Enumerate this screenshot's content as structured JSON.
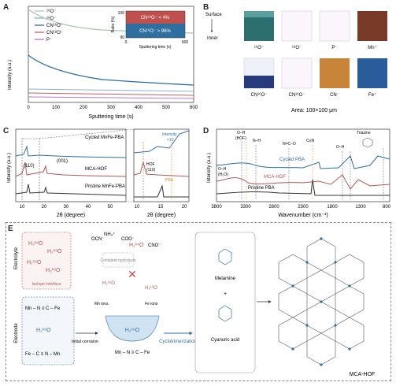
{
  "panels": {
    "A": {
      "label": "A",
      "ylabel": "Intensity (a.u.)",
      "xlabel": "Sputtering time (s)",
      "xticks": [
        "0",
        "100",
        "200",
        "300",
        "400",
        "500",
        "600"
      ],
      "legend": [
        "¹⁶O⁻",
        "¹⁸O⁻",
        "CN¹⁶O⁻",
        "CN¹⁸O⁻",
        "P⁻"
      ],
      "inset": {
        "ylabel": "Ratio (%)",
        "xlabel": "Sputtering time (s)",
        "yticks": [
          "90",
          "100"
        ],
        "xticks": [
          "0",
          "600"
        ],
        "top_label": "CN¹⁸O⁻ < 4%",
        "bottom_label": "CN¹⁶O⁻ > 96%",
        "colors": {
          "top": "#c0504d",
          "bottom": "#2f6f9f"
        }
      }
    },
    "B": {
      "label": "B",
      "surface_label": "Surface",
      "inner_label": "Inner",
      "row1": [
        "¹⁶O⁻",
        "¹⁸O⁻",
        "P⁻",
        "Mn⁺"
      ],
      "row2": [
        "CN¹⁶O⁻",
        "CN¹⁸O⁻",
        "CN⁻",
        "Fe⁺"
      ],
      "area": "Area: 100×100 µm"
    },
    "C": {
      "label": "C",
      "ylabel": "Intensity (a.u.)",
      "xlabel": "2θ (degree)",
      "xticks": [
        "10",
        "20",
        "30",
        "40",
        "50"
      ],
      "inset_xticks": [
        "10",
        "15",
        "20"
      ],
      "series_labels": [
        "Cycled MnFe-PBA",
        "MCA-HOF",
        "Pristine MnFe-PBA"
      ],
      "peaks": [
        "(110)",
        "(001)"
      ],
      "zoom_labels": {
        "intensity": "Intensity",
        "times": "×10",
        "hof": "HOF",
        "hof_peak": "(110)",
        "pba": "PBA"
      }
    },
    "D": {
      "label": "D",
      "ylabel": "Intensity (a.u.)",
      "xlabel": "Wavenumber (cm⁻¹)",
      "xticks": [
        "3800",
        "3300",
        "2800",
        "2300",
        "1800",
        "1300",
        "800"
      ],
      "series_labels": [
        "Cycled PBA",
        "MCA-HOF",
        "Pristine PBA"
      ],
      "annotations": [
        "O–H",
        "(HOF)",
        "N–H",
        "N=C–O",
        "C≡N",
        "O–H",
        "Triazine",
        "O–H",
        "(H₂O)"
      ]
    },
    "E": {
      "label": "E",
      "electrolyte_label": "Electrolyte",
      "electrode_label": "Electrode",
      "isotope_interface": "Isotope interface",
      "water_labels": [
        "H₂¹⁸O",
        "H₂¹⁸O",
        "H₂¹⁸O",
        "H₂¹⁸O"
      ],
      "electrode_rows": [
        "Mn – N ≡ C – Fe",
        "Fe – C ≡ N – Mn"
      ],
      "electrode_water": "H₂¹⁶O",
      "ions": [
        "OCN⁻",
        "NH₄⁺",
        "COO⁻",
        "CNO⁻"
      ],
      "complete_hydrolysis": "Complete hydrolysis",
      "center_water": "H₂¹⁸O",
      "small_waters": [
        "H₂¹⁸O",
        "H₂¹⁸O",
        "H₂¹⁶O"
      ],
      "mn_ions": "Mn ions",
      "fe_ions": "Fe ions",
      "initial_corrosion": "Initial corrosion",
      "cavity_water": "H₂¹⁶O",
      "cavity_bottom": "Mn – N ≡ C – Fe",
      "cyclotrimerization": "Cyclotrimerization",
      "melamine": "Melamine",
      "plus": "+",
      "cyanuric_acid": "Cyanuric acid",
      "hof_label": "MCA-HOF"
    }
  },
  "colors": {
    "o16": "#a9c9b3",
    "o18": "#8ab0d0",
    "cn16": "#2f6f9f",
    "cn18": "#c06060",
    "p": "#b37ac7",
    "cycled": "#2f6f9f",
    "mca": "#b05a5a",
    "pristine": "#333333",
    "accent": "#e08a30"
  }
}
